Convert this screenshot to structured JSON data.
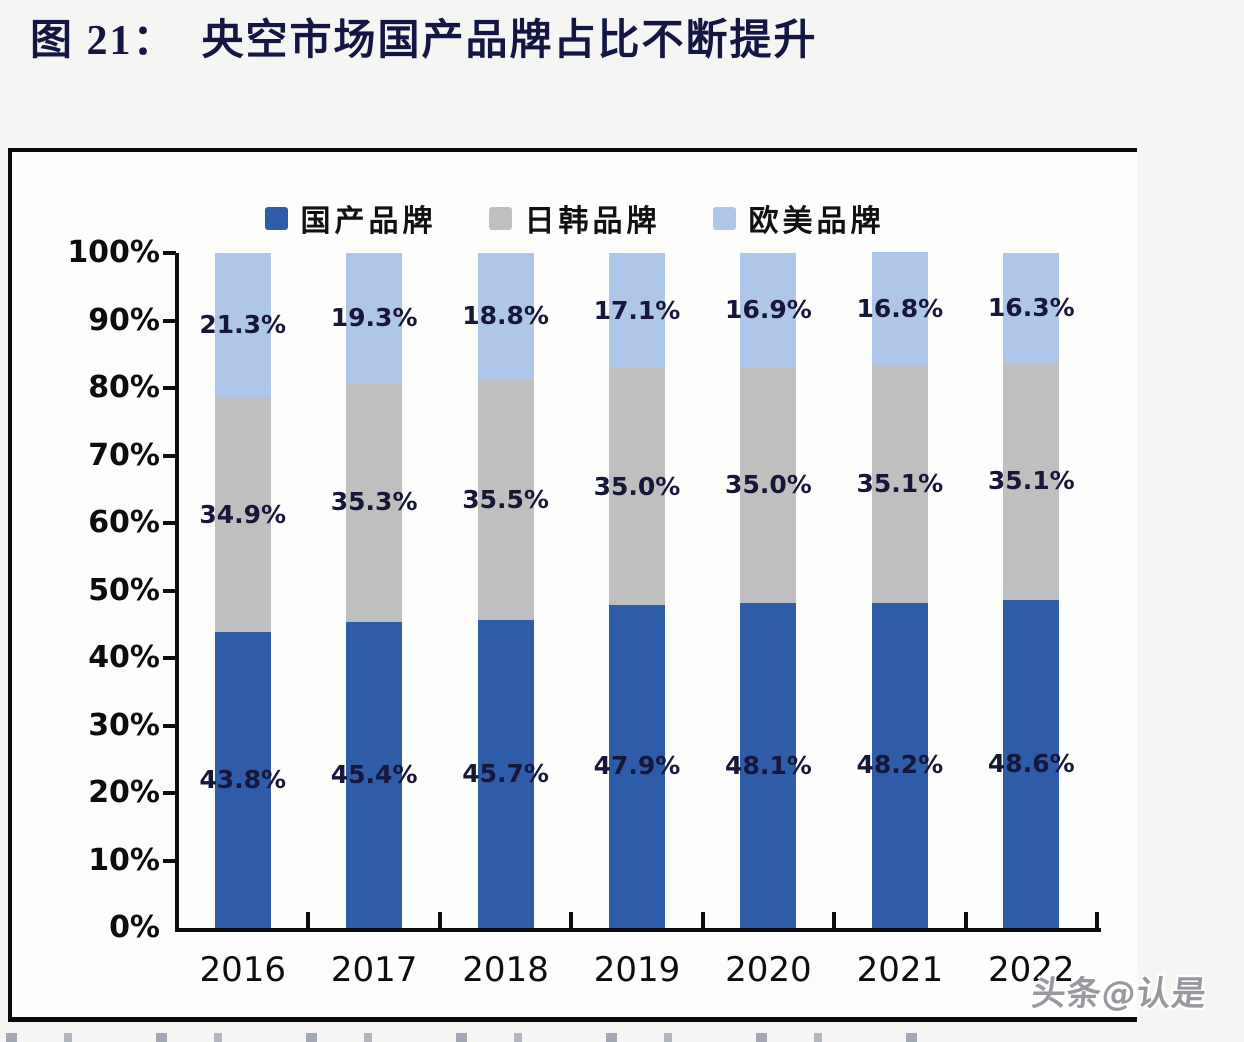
{
  "title": "图 21：  央空市场国产品牌占比不断提升",
  "watermark": "头条@认是",
  "chart_data": {
    "type": "bar",
    "stacked": true,
    "title": "央空市场国产品牌占比不断提升",
    "categories": [
      "2016",
      "2017",
      "2018",
      "2019",
      "2020",
      "2021",
      "2022"
    ],
    "series": [
      {
        "name": "国产品牌",
        "color": "#2E5CA8",
        "values": [
          43.8,
          45.4,
          45.7,
          47.9,
          48.1,
          48.2,
          48.6
        ]
      },
      {
        "name": "日韩品牌",
        "color": "#BFBFBF",
        "values": [
          34.9,
          35.3,
          35.5,
          35.0,
          35.0,
          35.1,
          35.1
        ]
      },
      {
        "name": "欧美品牌",
        "color": "#AEC6E8",
        "values": [
          21.3,
          19.3,
          18.8,
          17.1,
          16.9,
          16.8,
          16.3
        ]
      }
    ],
    "xlabel": "",
    "ylabel": "",
    "ylim": [
      0,
      100
    ],
    "ytick_labels": [
      "100%",
      "90%",
      "80%",
      "70%",
      "60%",
      "50%",
      "40%",
      "30%",
      "20%",
      "10%",
      "0%"
    ],
    "ytick_values": [
      100,
      90,
      80,
      70,
      60,
      50,
      40,
      30,
      20,
      10,
      0
    ],
    "value_label_format": "one-decimal-percent",
    "legend_position": "top-center",
    "grid": false,
    "axis_color": "#0d0d0d",
    "label_color": "#17173a"
  }
}
